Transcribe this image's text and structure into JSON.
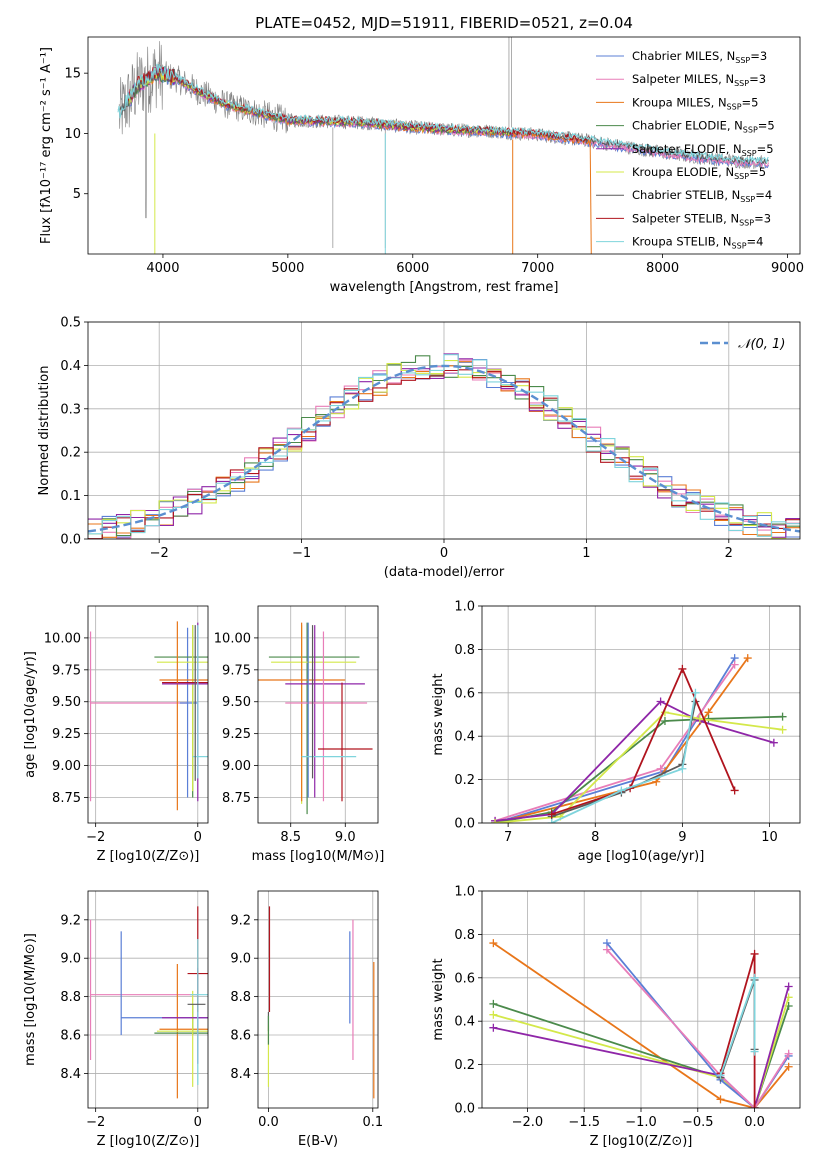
{
  "colors": {
    "chabrier_miles": "#5b7fd6",
    "salpeter_miles": "#e87db8",
    "kroupa_miles": "#e8761a",
    "chabrier_elodie": "#4b8a4b",
    "salpeter_elodie": "#8f26a8",
    "kroupa_elodie": "#d4e84a",
    "chabrier_stelib": "#5a5a5a",
    "salpeter_stelib": "#b0141e",
    "kroupa_stelib": "#7fd4dc",
    "normal": "#5b8fd0"
  },
  "chart_data": [
    {
      "type": "line",
      "title": "PLATE=0452, MJD=51911, FIBERID=0521, z=0.04",
      "xlabel": "wavelength [Angstrom, rest frame]",
      "ylabel": "Flux [fλ10⁻¹⁷ erg cm⁻² s⁻¹ A⁻¹]",
      "xlim": [
        3400,
        9100
      ],
      "ylim": [
        0,
        18
      ],
      "xticks": [
        "4000",
        "5000",
        "6000",
        "7000",
        "8000",
        "9000"
      ],
      "yticks": [
        "5",
        "10",
        "15"
      ],
      "legend_position": "top-right",
      "legend": [
        "Chabrier MILES, N_SSP=3",
        "Salpeter MILES, N_SSP=3",
        "Kroupa MILES, N_SSP=5",
        "Chabrier ELODIE, N_SSP=5",
        "Salpeter ELODIE, N_SSP=5",
        "Kroupa ELODIE, N_SSP=5",
        "Chabrier STELIB, N_SSP=4",
        "Salpeter STELIB, N_SSP=3",
        "Kroupa STELIB, N_SSP=4"
      ],
      "continuum": {
        "x": [
          3650,
          3800,
          3950,
          4100,
          4300,
          4500,
          4800,
          5000,
          5300,
          5600,
          6000,
          6300,
          6600,
          7000,
          7400,
          7700,
          8000,
          8300,
          8600,
          8800
        ],
        "y": [
          11.5,
          14.0,
          15.0,
          14.6,
          13.4,
          12.4,
          11.6,
          11.1,
          11.0,
          10.9,
          10.5,
          10.3,
          10.2,
          9.9,
          9.4,
          8.9,
          8.4,
          8.0,
          7.7,
          7.6
        ]
      }
    },
    {
      "type": "line",
      "xlabel": "(data-model)/error",
      "ylabel": "Normed distribution",
      "xlim": [
        -2.5,
        2.5
      ],
      "ylim": [
        0,
        0.5
      ],
      "xticks": [
        "−2",
        "−1",
        "0",
        "1",
        "2"
      ],
      "yticks": [
        "0.0",
        "0.1",
        "0.2",
        "0.3",
        "0.4",
        "0.5"
      ],
      "legend": [
        "𝒩(0, 1)"
      ],
      "legend_position": "top-right",
      "normal": {
        "mean": 0,
        "sd": 1
      }
    },
    {
      "type": "scatter",
      "xlabel": "Z [log10(Z/Z⊙)]",
      "ylabel": "age  [log10(age/yr)]",
      "xlim": [
        -2.15,
        0.2
      ],
      "ylim": [
        8.55,
        10.25
      ],
      "xticks": [
        "−2",
        "0"
      ],
      "yticks": [
        "8.75",
        "9.00",
        "9.25",
        "9.50",
        "9.75",
        "10.00"
      ],
      "errorbars": [
        {
          "c": "salpeter_miles",
          "x": -2.1,
          "y": 9.49,
          "xr": [
            -2.1,
            -0.2
          ],
          "yr": [
            8.72,
            10.05
          ]
        },
        {
          "c": "chabrier_miles",
          "x": -0.2,
          "y": 9.49,
          "xr": [
            -0.35,
            0.0
          ],
          "yr": [
            8.75,
            10.08
          ]
        },
        {
          "c": "chabrier_elodie",
          "x": -0.1,
          "y": 9.85,
          "xr": [
            -0.85,
            0.3
          ],
          "yr": [
            8.75,
            10.1
          ]
        },
        {
          "c": "kroupa_elodie",
          "x": -0.1,
          "y": 9.81,
          "xr": [
            -0.8,
            0.3
          ],
          "yr": [
            8.8,
            10.1
          ]
        },
        {
          "c": "salpeter_stelib",
          "x": 0.0,
          "y": 9.65,
          "xr": [
            -0.7,
            0.3
          ],
          "yr": [
            9.13,
            9.13
          ]
        },
        {
          "c": "kroupa_miles",
          "x": -0.4,
          "y": 9.67,
          "xr": [
            -0.75,
            0.3
          ],
          "yr": [
            8.65,
            10.13
          ]
        },
        {
          "c": "salpeter_elodie",
          "x": 0.0,
          "y": 9.64,
          "xr": [
            -0.7,
            0.3
          ],
          "yr": [
            8.72,
            10.12
          ]
        },
        {
          "c": "kroupa_stelib",
          "x": 0.0,
          "y": 9.07,
          "xr": [
            -0.1,
            0.2
          ],
          "yr": [
            8.9,
            10.1
          ]
        },
        {
          "c": "chabrier_stelib",
          "x": -0.05,
          "y": 9.5,
          "xr": [
            -0.05,
            -0.05
          ],
          "yr": [
            8.88,
            10.1
          ]
        }
      ]
    },
    {
      "type": "scatter",
      "xlabel": "mass [log10(M/M⊙)]",
      "ylabel": "",
      "xlim": [
        8.2,
        9.3
      ],
      "ylim": [
        8.55,
        10.25
      ],
      "xticks": [
        "8.5",
        "9.0"
      ],
      "yticks": [
        "8.75",
        "9.00",
        "9.25",
        "9.50",
        "9.75",
        "10.00"
      ],
      "errorbars": [
        {
          "c": "chabrier_elodie",
          "x": 8.65,
          "y": 9.85,
          "xr": [
            8.3,
            9.13
          ],
          "yr": [
            8.62,
            10.12
          ]
        },
        {
          "c": "kroupa_elodie",
          "x": 8.6,
          "y": 9.81,
          "xr": [
            8.32,
            9.1
          ],
          "yr": [
            8.7,
            10.1
          ]
        },
        {
          "c": "kroupa_miles",
          "x": 8.6,
          "y": 9.67,
          "xr": [
            8.2,
            9.0
          ],
          "yr": [
            8.72,
            10.12
          ]
        },
        {
          "c": "salpeter_elodie",
          "x": 8.72,
          "y": 9.64,
          "xr": [
            8.45,
            9.18
          ],
          "yr": [
            8.75,
            10.1
          ]
        },
        {
          "c": "salpeter_miles",
          "x": 8.8,
          "y": 9.49,
          "xr": [
            8.45,
            9.2
          ],
          "yr": [
            8.72,
            10.05
          ]
        },
        {
          "c": "chabrier_miles",
          "x": 8.66,
          "y": 9.49,
          "xr": [
            8.66,
            8.66
          ],
          "yr": [
            8.75,
            10.12
          ]
        },
        {
          "c": "salpeter_stelib",
          "x": 8.97,
          "y": 9.13,
          "xr": [
            8.75,
            9.25
          ],
          "yr": [
            8.72,
            9.65
          ]
        },
        {
          "c": "kroupa_stelib",
          "x": 8.85,
          "y": 9.07,
          "xr": [
            8.6,
            9.1
          ],
          "yr": [
            9.07,
            9.07
          ]
        },
        {
          "c": "chabrier_stelib",
          "x": 8.7,
          "y": 9.5,
          "xr": [
            8.7,
            8.7
          ],
          "yr": [
            8.9,
            10.1
          ]
        }
      ]
    },
    {
      "type": "line",
      "xlabel": "age  [log10(age/yr)]",
      "ylabel": "mass weight",
      "xlim": [
        6.7,
        10.35
      ],
      "ylim": [
        0,
        1
      ],
      "xticks": [
        "7",
        "8",
        "9",
        "10"
      ],
      "yticks": [
        "0.0",
        "0.2",
        "0.4",
        "0.6",
        "0.8",
        "1.0"
      ],
      "series": [
        {
          "c": "chabrier_miles",
          "x": [
            6.85,
            8.8,
            9.6
          ],
          "y": [
            0.0,
            0.24,
            0.76
          ]
        },
        {
          "c": "salpeter_miles",
          "x": [
            6.85,
            8.75,
            9.6
          ],
          "y": [
            0.01,
            0.25,
            0.73
          ]
        },
        {
          "c": "kroupa_miles",
          "x": [
            6.85,
            8.7,
            9.3,
            9.75
          ],
          "y": [
            0.0,
            0.19,
            0.51,
            0.76
          ]
        },
        {
          "c": "chabrier_elodie",
          "x": [
            6.85,
            7.5,
            8.8,
            9.3,
            10.15
          ],
          "y": [
            0.0,
            0.05,
            0.47,
            0.48,
            0.49
          ]
        },
        {
          "c": "salpeter_elodie",
          "x": [
            6.85,
            7.5,
            8.75,
            9.2,
            10.05
          ],
          "y": [
            0.01,
            0.04,
            0.56,
            0.47,
            0.37
          ]
        },
        {
          "c": "kroupa_elodie",
          "x": [
            6.85,
            7.6,
            8.8,
            9.2,
            10.15
          ],
          "y": [
            0.0,
            0.03,
            0.51,
            0.48,
            0.43
          ]
        },
        {
          "c": "chabrier_stelib",
          "x": [
            7.5,
            8.3,
            9.0,
            9.15
          ],
          "y": [
            0.03,
            0.14,
            0.27,
            0.56
          ]
        },
        {
          "c": "salpeter_stelib",
          "x": [
            7.5,
            8.4,
            9.0,
            9.6
          ],
          "y": [
            0.04,
            0.16,
            0.71,
            0.15
          ]
        },
        {
          "c": "kroupa_stelib",
          "x": [
            7.5,
            8.3,
            9.0,
            9.15
          ],
          "y": [
            0.0,
            0.15,
            0.25,
            0.6
          ]
        }
      ]
    },
    {
      "type": "scatter",
      "xlabel": "Z [log10(Z/Z⊙)]",
      "ylabel": "mass [log10(M/M⊙)]",
      "xlim": [
        -2.15,
        0.2
      ],
      "ylim": [
        8.22,
        9.35
      ],
      "xticks": [
        "−2",
        "0"
      ],
      "yticks": [
        "8.4",
        "8.6",
        "8.8",
        "9.0",
        "9.2"
      ],
      "errorbars": [
        {
          "c": "salpeter_miles",
          "x": -2.1,
          "y": 8.81,
          "xr": [
            -2.1,
            0.0
          ],
          "yr": [
            8.47,
            9.2
          ]
        },
        {
          "c": "chabrier_miles",
          "x": -1.5,
          "y": 8.69,
          "xr": [
            -1.5,
            0.2
          ],
          "yr": [
            8.6,
            9.14
          ]
        },
        {
          "c": "kroupa_miles",
          "x": -0.4,
          "y": 8.63,
          "xr": [
            -0.75,
            0.3
          ],
          "yr": [
            8.27,
            8.97
          ]
        },
        {
          "c": "chabrier_elodie",
          "x": -0.1,
          "y": 8.61,
          "xr": [
            -0.85,
            0.3
          ],
          "yr": [
            8.6,
            8.76
          ]
        },
        {
          "c": "kroupa_elodie",
          "x": -0.1,
          "y": 8.62,
          "xr": [
            -0.8,
            0.3
          ],
          "yr": [
            8.33,
            8.83
          ]
        },
        {
          "c": "salpeter_elodie",
          "x": 0.0,
          "y": 8.69,
          "xr": [
            -0.7,
            0.3
          ],
          "yr": [
            8.45,
            8.95
          ]
        },
        {
          "c": "salpeter_stelib",
          "x": 0.0,
          "y": 8.92,
          "xr": [
            -0.2,
            0.25
          ],
          "yr": [
            8.72,
            9.27
          ]
        },
        {
          "c": "kroupa_stelib",
          "x": 0.0,
          "y": 8.81,
          "xr": [
            -0.15,
            0.2
          ],
          "yr": [
            8.34,
            9.1
          ]
        },
        {
          "c": "chabrier_stelib",
          "x": -0.05,
          "y": 8.76,
          "xr": [
            -0.2,
            0.15
          ],
          "yr": [
            8.76,
            8.76
          ]
        }
      ]
    },
    {
      "type": "scatter",
      "xlabel": "E(B-V)",
      "ylabel": "",
      "xlim": [
        -0.01,
        0.105
      ],
      "ylim": [
        8.22,
        9.35
      ],
      "xticks": [
        "0.0",
        "0.1"
      ],
      "yticks": [
        "8.4",
        "8.6",
        "8.8",
        "9.0",
        "9.2"
      ],
      "errorbars": [
        {
          "c": "chabrier_miles",
          "x": 0.078,
          "y": 8.9,
          "xr": [
            0.078,
            0.078
          ],
          "yr": [
            8.66,
            9.14
          ]
        },
        {
          "c": "salpeter_miles",
          "x": 0.081,
          "y": 8.84,
          "xr": [
            0.081,
            0.081
          ],
          "yr": [
            8.47,
            9.2
          ]
        },
        {
          "c": "kroupa_miles",
          "x": 0.101,
          "y": 8.63,
          "xr": [
            0.101,
            0.101
          ],
          "yr": [
            8.27,
            8.98
          ]
        },
        {
          "c": "salpeter_stelib",
          "x": 0.001,
          "y": 8.92,
          "xr": [
            0.001,
            0.001
          ],
          "yr": [
            8.72,
            9.27
          ]
        },
        {
          "c": "chabrier_stelib",
          "x": 0.0,
          "y": 8.68,
          "xr": [
            0.0,
            0.0
          ],
          "yr": [
            8.62,
            8.72
          ]
        },
        {
          "c": "kroupa_elodie",
          "x": 0.0,
          "y": 8.5,
          "xr": [
            0.0,
            0.0
          ],
          "yr": [
            8.33,
            8.65
          ]
        },
        {
          "c": "chabrier_elodie",
          "x": 0.0,
          "y": 8.6,
          "xr": [
            0.0,
            0.0
          ],
          "yr": [
            8.55,
            8.7
          ]
        }
      ]
    },
    {
      "type": "line",
      "xlabel": "Z [log10(Z/Z⊙)]",
      "ylabel": "mass weight",
      "xlim": [
        -2.4,
        0.4
      ],
      "ylim": [
        0,
        1
      ],
      "xticks": [
        "−2.0",
        "−1.5",
        "−1.0",
        "−0.5",
        "0.0"
      ],
      "yticks": [
        "0.0",
        "0.2",
        "0.4",
        "0.6",
        "0.8",
        "1.0"
      ],
      "series": [
        {
          "c": "kroupa_miles",
          "x": [
            -2.3,
            -0.3,
            0.0,
            0.3
          ],
          "y": [
            0.76,
            0.04,
            0.0,
            0.19
          ]
        },
        {
          "c": "chabrier_elodie",
          "x": [
            -2.3,
            -0.3,
            0.0,
            0.3
          ],
          "y": [
            0.48,
            0.14,
            0.0,
            0.47
          ]
        },
        {
          "c": "kroupa_elodie",
          "x": [
            -2.3,
            -0.3,
            0.0,
            0.3
          ],
          "y": [
            0.43,
            0.14,
            0.0,
            0.51
          ]
        },
        {
          "c": "salpeter_elodie",
          "x": [
            -2.3,
            -0.3,
            0.0,
            0.3
          ],
          "y": [
            0.37,
            0.15,
            0.0,
            0.56
          ]
        },
        {
          "c": "chabrier_miles",
          "x": [
            -1.3,
            -0.3,
            0.0,
            0.3
          ],
          "y": [
            0.76,
            0.13,
            0.0,
            0.24
          ]
        },
        {
          "c": "salpeter_miles",
          "x": [
            -1.3,
            -0.3,
            0.0,
            0.3
          ],
          "y": [
            0.73,
            0.15,
            0.0,
            0.25
          ]
        },
        {
          "c": "chabrier_stelib",
          "x": [
            -0.3,
            0.0,
            0.0
          ],
          "y": [
            0.14,
            0.59,
            0.27
          ]
        },
        {
          "c": "salpeter_stelib",
          "x": [
            -0.3,
            0.0,
            0.0
          ],
          "y": [
            0.16,
            0.71,
            0.0
          ]
        },
        {
          "c": "kroupa_stelib",
          "x": [
            -0.3,
            0.0,
            0.0
          ],
          "y": [
            0.15,
            0.6,
            0.26
          ]
        }
      ]
    }
  ]
}
